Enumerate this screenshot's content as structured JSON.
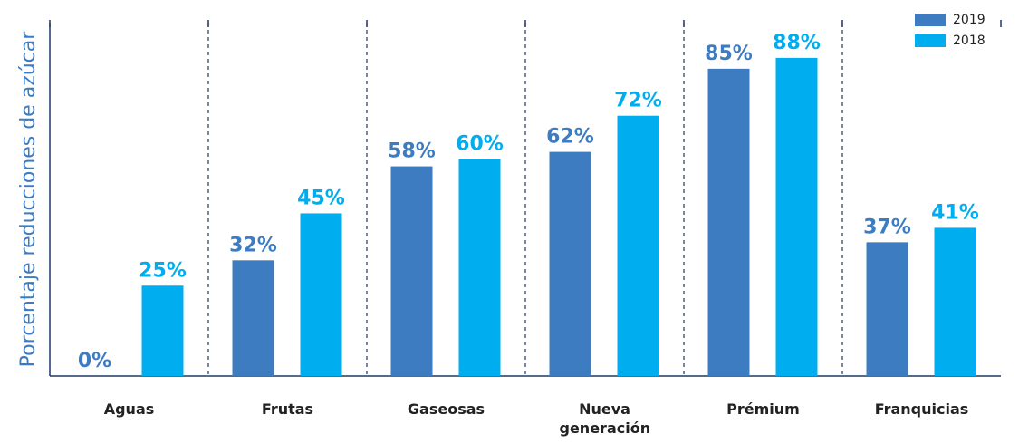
{
  "chart_data": {
    "type": "bar",
    "y_label": "Porcentaje reducciones de azúcar",
    "categories": [
      "Aguas",
      "Frutas",
      "Gaseosas",
      "Nueva generación",
      "Prémium",
      "Franquicias"
    ],
    "series": [
      {
        "name": "2019",
        "color": "#3d7cc1",
        "values": [
          0,
          32,
          58,
          62,
          85,
          37
        ],
        "value_labels": [
          "0%",
          "32%",
          "58%",
          "62%",
          "85%",
          "37%"
        ]
      },
      {
        "name": "2018",
        "color": "#00aeef",
        "values": [
          25,
          45,
          60,
          72,
          88,
          41
        ],
        "value_labels": [
          "25%",
          "45%",
          "60%",
          "72%",
          "88%",
          "41%"
        ]
      }
    ],
    "ylim": [
      0,
      100
    ],
    "legend": "top-right"
  }
}
